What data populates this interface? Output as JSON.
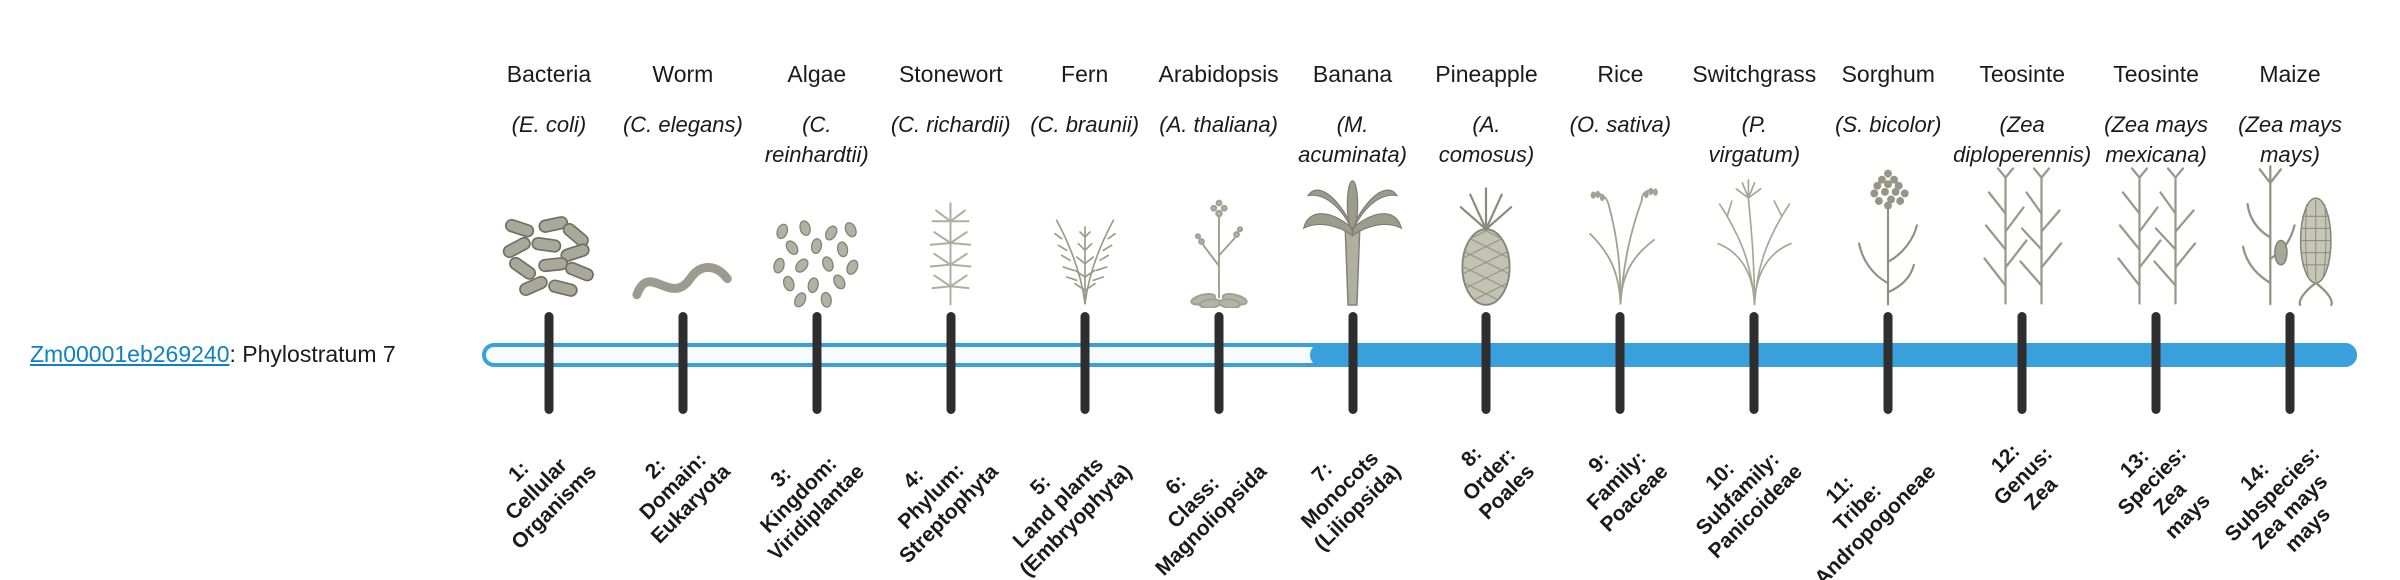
{
  "gene": {
    "id": "Zm00001eb269240",
    "suffix": ": Phylostratum 7",
    "phylostratum": 7
  },
  "colors": {
    "accent": "#3aa0dc",
    "link": "#0f81c0",
    "tick": "#2e2e2e",
    "text": "#1a1a1a"
  },
  "strata": [
    {
      "organism": "Bacteria",
      "scientific": "(E. coli)",
      "icon": "bacteria-icon",
      "filled": false,
      "rank_label": "1:\nCellular\nOrganisms"
    },
    {
      "organism": "Worm",
      "scientific": "(C. elegans)",
      "icon": "worm-icon",
      "filled": false,
      "rank_label": "2:\nDomain:\nEukaryota"
    },
    {
      "organism": "Algae",
      "scientific": "(C.\nreinhardtii)",
      "icon": "algae-icon",
      "filled": false,
      "rank_label": "3:\nKingdom:\nViridiplantae"
    },
    {
      "organism": "Stonewort",
      "scientific": "(C. richardii)",
      "icon": "stonewort-icon",
      "filled": false,
      "rank_label": "4:\nPhylum:\nStreptophyta"
    },
    {
      "organism": "Fern",
      "scientific": "(C. braunii)",
      "icon": "fern-icon",
      "filled": false,
      "rank_label": "5:\nLand plants\n(Embryophyta)"
    },
    {
      "organism": "Arabidopsis",
      "scientific": "(A. thaliana)",
      "icon": "arabidopsis-icon",
      "filled": false,
      "rank_label": "6:\nClass:\nMagnoliopsida"
    },
    {
      "organism": "Banana",
      "scientific": "(M.\nacuminata)",
      "icon": "banana-icon",
      "filled": true,
      "rank_label": "7:\nMonocots\n(Liliopsida)"
    },
    {
      "organism": "Pineapple",
      "scientific": "(A.\ncomosus)",
      "icon": "pineapple-icon",
      "filled": true,
      "rank_label": "8:\nOrder:\nPoales"
    },
    {
      "organism": "Rice",
      "scientific": "(O. sativa)",
      "icon": "rice-icon",
      "filled": true,
      "rank_label": "9:\nFamily:\nPoaceae"
    },
    {
      "organism": "Switchgrass",
      "scientific": "(P.\nvirgatum)",
      "icon": "switchgrass-icon",
      "filled": true,
      "rank_label": "10:\nSubfamily:\nPanicoideae"
    },
    {
      "organism": "Sorghum",
      "scientific": "(S. bicolor)",
      "icon": "sorghum-icon",
      "filled": true,
      "rank_label": "11:\nTribe:\nAndropogoneae"
    },
    {
      "organism": "Teosinte",
      "scientific": "(Zea\ndiploperennis)",
      "icon": "teosinte-icon",
      "filled": true,
      "rank_label": "12:\nGenus:\nZea"
    },
    {
      "organism": "Teosinte",
      "scientific": "(Zea mays\nmexicana)",
      "icon": "teosinte-icon",
      "filled": true,
      "rank_label": "13:\nSpecies:\nZea\nmays"
    },
    {
      "organism": "Maize",
      "scientific": "(Zea mays\nmays)",
      "icon": "maize-icon",
      "filled": true,
      "rank_label": "14:\nSubspecies:\nZea mays\nmays"
    }
  ]
}
